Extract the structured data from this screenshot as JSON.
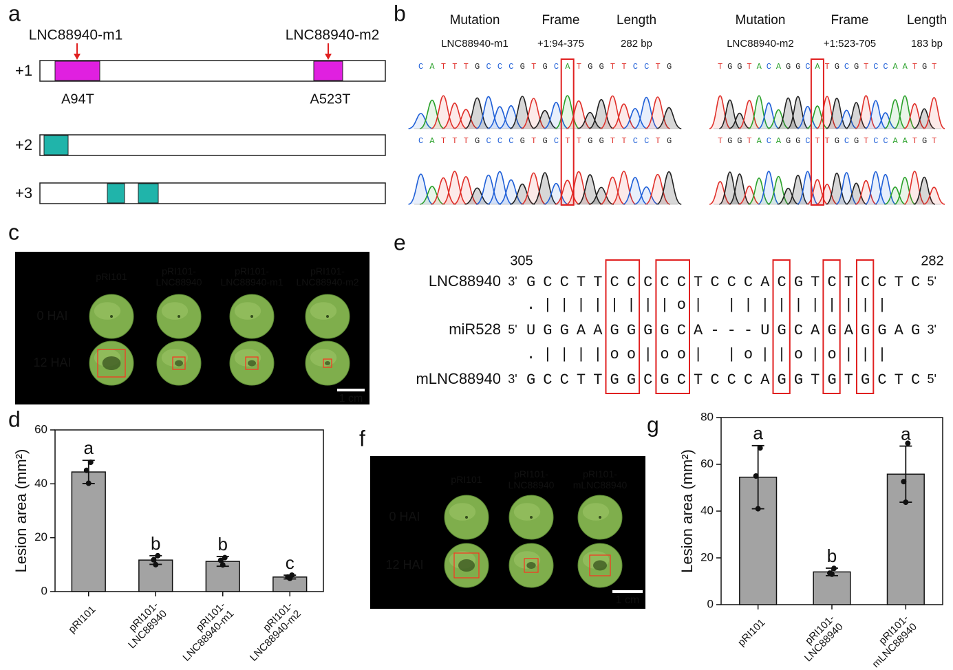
{
  "panel_labels": [
    "a",
    "b",
    "c",
    "d",
    "e",
    "f",
    "g"
  ],
  "orf": {
    "frames": [
      "+1",
      "+2",
      "+3"
    ],
    "mutations": [
      {
        "name": "LNC88940-m1",
        "change": "A94T"
      },
      {
        "name": "LNC88940-m2",
        "change": "A523T"
      }
    ]
  },
  "sequencing": {
    "headers": [
      "Mutation",
      "Frame",
      "Length"
    ],
    "samples": [
      {
        "mutation": "LNC88940-m1",
        "frame": "+1:94-375",
        "length": "282 bp",
        "wild_type": "CATTTGCCCGTGCATGGTTCCTG",
        "mutant": "CATTTGCCCGTGCTTGGTTCCTG"
      },
      {
        "mutation": "LNC88940-m2",
        "frame": "+1:523-705",
        "length": "183 bp",
        "wild_type": "TGGTACAGGCATGCGTCCAATGT",
        "mutant": "TGGTACAGGCTTGCGTCCAATGT"
      }
    ]
  },
  "leaf_assay_c": {
    "columns": [
      "pRI101",
      "pRI101-LNC88940",
      "pRI101-LNC88940-m1",
      "pRI101-LNC88940-m2"
    ],
    "rows": [
      "0 HAI",
      "12 HAI"
    ],
    "scale": "1 cm"
  },
  "pairing": {
    "start": 305,
    "end": 282,
    "rows": [
      {
        "name": "LNC88940",
        "left": "3'",
        "sequence": "GCCTTCCCCCTCCCACGTCTCCTC",
        "right": "5'"
      },
      {
        "name": "miR528",
        "left": "5'",
        "sequence": "UGGAAGGGGCA---UGCAGAGGAG",
        "right": "3'"
      },
      {
        "name": "mLNC88940",
        "left": "3'",
        "sequence": "GCCTTGGCGCTCCCAGGTGTGCTC",
        "right": "5'"
      }
    ],
    "matches": [
      ".||||||||o|   ||||||||||",
      ".||||oo|oo|   |o||o|o|||"
    ]
  },
  "leaf_assay_f": {
    "columns": [
      "pRI101",
      "pRI101-LNC88940",
      "pRI101-mLNC88940"
    ],
    "rows": [
      "0 HAI",
      "12 HAI"
    ],
    "scale": "1 cm"
  },
  "chart_data": [
    {
      "type": "bar",
      "ylabel": "Lesion area (mm²)",
      "categories": [
        "pRI101",
        "pRI101-LNC88940",
        "pRI101-LNC88940-m1",
        "pRI101-LNC88940-m2"
      ],
      "values": [
        44.4,
        11.7,
        11.2,
        5.4
      ],
      "errors": [
        4.3,
        1.6,
        1.8,
        0.7
      ],
      "points": [
        [
          48,
          45,
          40.2
        ],
        [
          13.3,
          11.8,
          10
        ],
        [
          12.6,
          11.6,
          9.9
        ],
        [
          6.1,
          5.4,
          4.9
        ]
      ],
      "annotations": [
        "a",
        "b",
        "b",
        "c"
      ],
      "color": "#a3a3a3",
      "ylim": [
        0,
        60
      ],
      "yticks": [
        0,
        20,
        40,
        60
      ]
    },
    {
      "type": "bar",
      "ylabel": "Lesion area (mm²)",
      "categories": [
        "pRI101",
        "pRI101-LNC88940",
        "pRI101-mLNC88940"
      ],
      "values": [
        54.5,
        14,
        55.8
      ],
      "errors": [
        13.5,
        1.6,
        12
      ],
      "points": [
        [
          67,
          55,
          41
        ],
        [
          15.5,
          13.5,
          13
        ],
        [
          69,
          52.6,
          43.8
        ]
      ],
      "annotations": [
        "a",
        "b",
        "a"
      ],
      "color": "#a3a3a3",
      "ylim": [
        0,
        80
      ],
      "yticks": [
        0,
        20,
        40,
        60,
        80
      ]
    }
  ]
}
